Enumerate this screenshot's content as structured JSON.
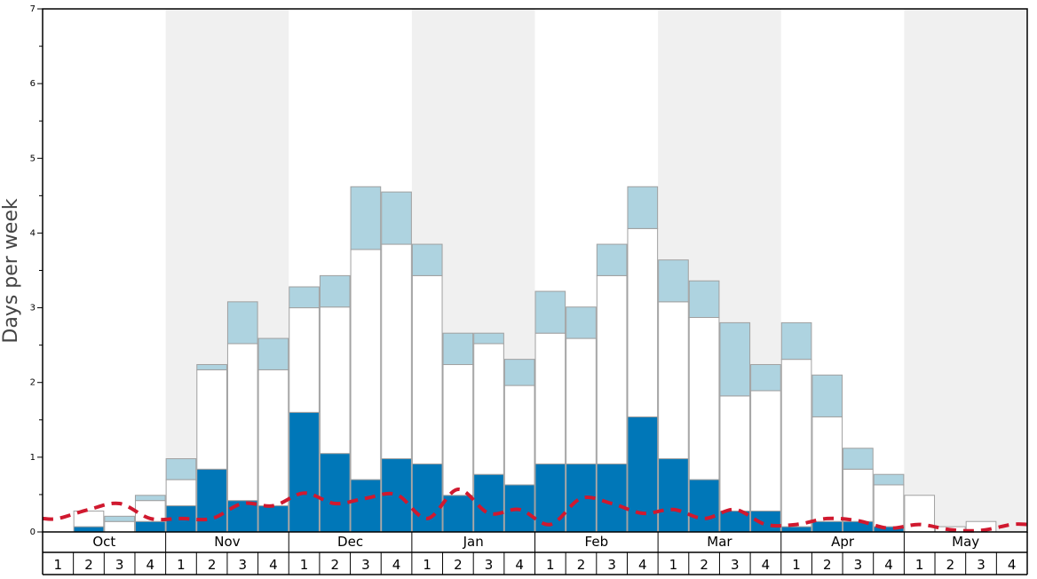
{
  "chart_data": {
    "type": "bar",
    "stacked": true,
    "ylabel": "Days per week",
    "ylim": [
      0,
      7
    ],
    "y_ticks": [
      "0",
      "1",
      "2",
      "3",
      "4",
      "5",
      "6",
      "7"
    ],
    "months": [
      "Oct",
      "Nov",
      "Dec",
      "Jan",
      "Feb",
      "Mar",
      "Apr",
      "May"
    ],
    "weeks_per_month": 4,
    "week_labels": [
      "1",
      "2",
      "3",
      "4"
    ],
    "shaded_months": [
      "Nov",
      "Jan",
      "Mar",
      "May"
    ],
    "series": [
      {
        "color": "#0077b8",
        "values": [
          0,
          0.07,
          0,
          0.14,
          0.35,
          0.84,
          0.42,
          0.35,
          1.6,
          1.05,
          0.7,
          0.98,
          0.91,
          0.49,
          0.77,
          0.63,
          0.91,
          0.91,
          0.91,
          1.54,
          0.98,
          0.7,
          0.28,
          0.28,
          0.07,
          0.14,
          0.14,
          0.07,
          0,
          0,
          0,
          0
        ]
      },
      {
        "color": "#ffffff",
        "values": [
          0,
          0.21,
          0.14,
          0.28,
          0.35,
          1.33,
          2.1,
          1.82,
          1.4,
          1.96,
          3.08,
          2.87,
          2.52,
          1.75,
          1.75,
          1.33,
          1.75,
          1.68,
          2.52,
          2.52,
          2.1,
          2.17,
          1.54,
          1.61,
          2.24,
          1.4,
          0.7,
          0.56,
          0.49,
          0.07,
          0.14,
          0
        ],
        "border": "#aaaaaa"
      },
      {
        "color": "#aed3e0",
        "values": [
          0,
          0,
          0.07,
          0.07,
          0.28,
          0.07,
          0.56,
          0.42,
          0.28,
          0.42,
          0.84,
          0.7,
          0.42,
          0.42,
          0.14,
          0.35,
          0.56,
          0.42,
          0.42,
          0.56,
          0.56,
          0.49,
          0.98,
          0.35,
          0.49,
          0.56,
          0.28,
          0.14,
          0,
          0,
          0,
          0
        ]
      }
    ],
    "average_line": {
      "color": "#d0192f",
      "style": "dashed",
      "values": [
        0.18,
        0.3,
        0.38,
        0.18,
        0.18,
        0.18,
        0.38,
        0.35,
        0.52,
        0.38,
        0.45,
        0.5,
        0.18,
        0.57,
        0.25,
        0.3,
        0.1,
        0.45,
        0.38,
        0.25,
        0.3,
        0.18,
        0.3,
        0.1,
        0.1,
        0.18,
        0.15,
        0.05,
        0.1,
        0.03,
        0.02,
        0.1
      ]
    }
  }
}
